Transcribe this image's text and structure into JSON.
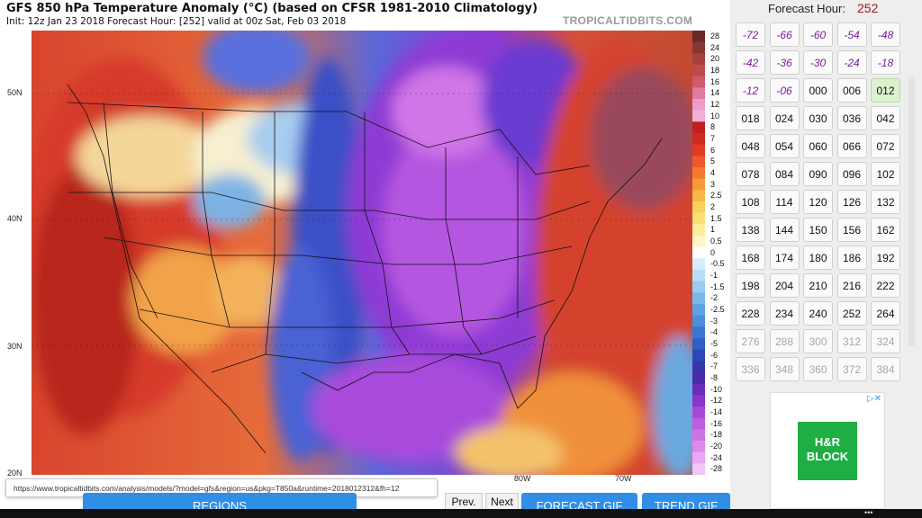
{
  "map": {
    "title": "GFS 850 hPa Temperature Anomaly (°C) (based on CFSR 1981-2010 Climatology)",
    "subtitle": "Init: 12z Jan 23 2018   Forecast Hour: [252]   valid at 00z Sat, Feb 03 2018",
    "brand": "TROPICALTIDBITS.COM",
    "lat_labels": [
      "50N",
      "40N",
      "30N",
      "20N"
    ],
    "lon_labels": [
      "80W",
      "70W"
    ],
    "colorbar_labels": [
      "28",
      "24",
      "20",
      "18",
      "16",
      "14",
      "12",
      "10",
      "8",
      "7",
      "6",
      "5",
      "4",
      "3",
      "2.5",
      "2",
      "1.5",
      "1",
      "0.5",
      "0",
      "-0.5",
      "-1",
      "-1.5",
      "-2",
      "-2.5",
      "-3",
      "-4",
      "-5",
      "-6",
      "-7",
      "-8",
      "-10",
      "-12",
      "-14",
      "-16",
      "-18",
      "-20",
      "-24",
      "-28"
    ],
    "colors": {
      "deep_warm": "#7a1a1a",
      "warm": "#c0392b",
      "mild": "#f29a3c",
      "neutral": "#f5f3dc",
      "cool": "#6aa8e0",
      "cold": "#3b50c8",
      "very_cold": "#7d32c8",
      "extreme_cold": "#c860e0"
    }
  },
  "status_url": "https://www.tropicaltidbits.com/analysis/models/?model=gfs&region=us&pkg=T850a&runtime=2018012312&fh=12",
  "bottom": {
    "regions_label": "REGIONS",
    "prev_label": "Prev.",
    "next_label": "Next",
    "forecast_gif_label": "FORECAST GIF",
    "trend_gif_label": "TREND GIF"
  },
  "side": {
    "forecast_hour_label": "Forecast Hour:",
    "forecast_hour_value": "252",
    "hours": [
      [
        "-72",
        "-66",
        "-60",
        "-54",
        "-48"
      ],
      [
        "-42",
        "-36",
        "-30",
        "-24",
        "-18"
      ],
      [
        "-12",
        "-06",
        "000",
        "006",
        "012"
      ],
      [
        "018",
        "024",
        "030",
        "036",
        "042"
      ],
      [
        "048",
        "054",
        "060",
        "066",
        "072"
      ],
      [
        "078",
        "084",
        "090",
        "096",
        "102"
      ],
      [
        "108",
        "114",
        "120",
        "126",
        "132"
      ],
      [
        "138",
        "144",
        "150",
        "156",
        "162"
      ],
      [
        "168",
        "174",
        "180",
        "186",
        "192"
      ],
      [
        "198",
        "204",
        "210",
        "216",
        "222"
      ],
      [
        "228",
        "234",
        "240",
        "252",
        "264"
      ],
      [
        "276",
        "288",
        "300",
        "312",
        "324"
      ],
      [
        "336",
        "348",
        "360",
        "372",
        "384"
      ]
    ],
    "selected_hour": "012",
    "ad": {
      "logo_text": "H&R BLOCK",
      "close_icon": "ad-close-icon"
    }
  }
}
